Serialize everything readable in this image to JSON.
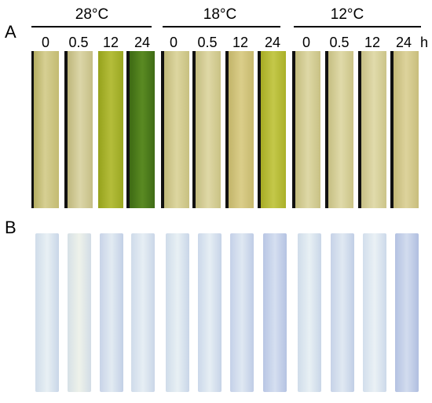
{
  "figure": {
    "panel_a_letter": "A",
    "panel_b_letter": "B",
    "unit": "h",
    "temperatures": [
      {
        "label": "28°C",
        "times": [
          "0",
          "0.5",
          "12",
          "24"
        ]
      },
      {
        "label": "18°C",
        "times": [
          "0",
          "0.5",
          "12",
          "24"
        ]
      },
      {
        "label": "12°C",
        "times": [
          "0",
          "0.5",
          "12",
          "24"
        ]
      }
    ],
    "colors": {
      "leaf_28_0": "#c9c27a",
      "leaf_28_05": "#cfc78c",
      "leaf_28_12": "#a8b22a",
      "leaf_28_24": "#4e7a1c",
      "leaf_18_0": "#cfc88a",
      "leaf_18_05": "#d2c98e",
      "leaf_18_12": "#cec079",
      "leaf_18_24": "#b6ba34",
      "leaf_12_0": "#d0c88a",
      "leaf_12_05": "#d1c98d",
      "leaf_12_12": "#d2c98f",
      "leaf_12_24": "#cfc485",
      "stain_light": "#dde9f0",
      "stain_dense": "#b7c6e4"
    }
  }
}
